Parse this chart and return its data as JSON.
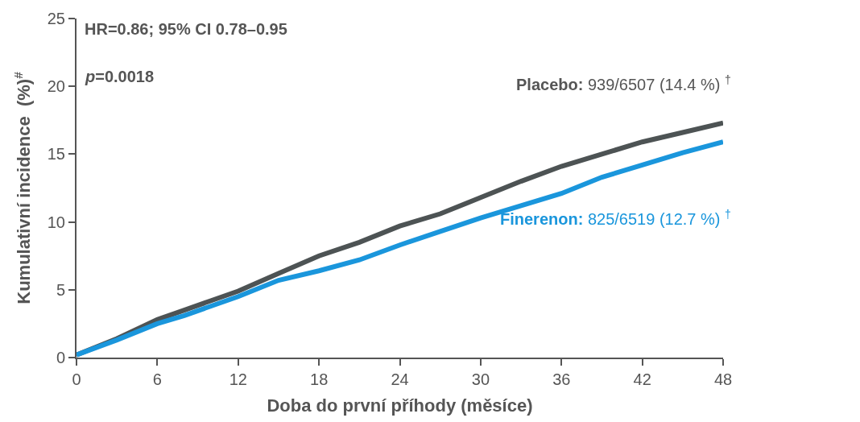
{
  "chart_data": {
    "type": "line",
    "xlabel": "Doba do první příhody (měsíce)",
    "ylabel": "Kumulativní incidence  (%)$^{#}$",
    "x": [
      0,
      3,
      6,
      8,
      10,
      12,
      15,
      18,
      21,
      24,
      27,
      30,
      33,
      36,
      39,
      42,
      45,
      48
    ],
    "series": [
      {
        "color": "#4d5354",
        "values": [
          0.2,
          1.4,
          2.8,
          3.5,
          4.2,
          4.9,
          6.2,
          7.5,
          8.5,
          9.7,
          10.6,
          11.8,
          13.0,
          14.1,
          15.0,
          15.9,
          16.6,
          17.3
        ]
      },
      {
        "color": "#1a96dc",
        "values": [
          0.2,
          1.3,
          2.5,
          3.1,
          3.8,
          4.5,
          5.7,
          6.4,
          7.2,
          8.3,
          9.3,
          10.3,
          11.2,
          12.1,
          13.3,
          14.2,
          15.1,
          15.9
        ]
      }
    ],
    "xlim": [
      0,
      48
    ],
    "xticks": [
      0,
      6,
      12,
      18,
      24,
      30,
      36,
      42,
      48
    ],
    "ylim": [
      0,
      25
    ],
    "yticks": [
      0,
      5,
      10,
      15,
      20,
      25
    ],
    "grid": false,
    "legend": false,
    "marker": "none",
    "line_style": "solid",
    "annotations": [
      "HR=0.86; 95% CI 0.78–0.95",
      "p=0.0018",
      "Placebo: 939/6507 (14.4 %) $^{†}$",
      "Finerenon: 825/6519 (12.7 %) $^{†}$"
    ]
  }
}
